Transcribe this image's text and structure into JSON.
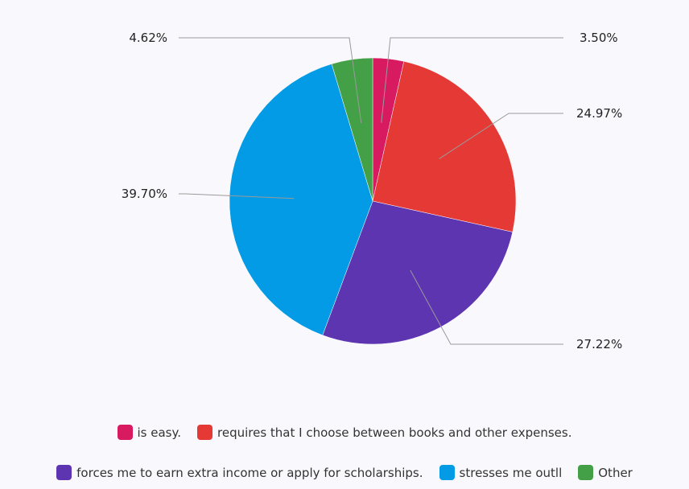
{
  "chart_data": {
    "type": "pie",
    "title": "",
    "slices": [
      {
        "name": "is easy.",
        "value": 3.5,
        "label": "3.50%",
        "color": "#d81b60"
      },
      {
        "name": "requires that I choose between books and other expenses.",
        "value": 24.97,
        "label": "24.97%",
        "color": "#e53935"
      },
      {
        "name": "forces me to earn extra income or apply for scholarships.",
        "value": 27.22,
        "label": "27.22%",
        "color": "#5e35b1"
      },
      {
        "name": "stresses me outll",
        "value": 39.7,
        "label": "39.70%",
        "color": "#039be5"
      },
      {
        "name": "Other",
        "value": 4.62,
        "label": "4.62%",
        "color": "#43a047"
      }
    ],
    "legend_position": "bottom"
  }
}
